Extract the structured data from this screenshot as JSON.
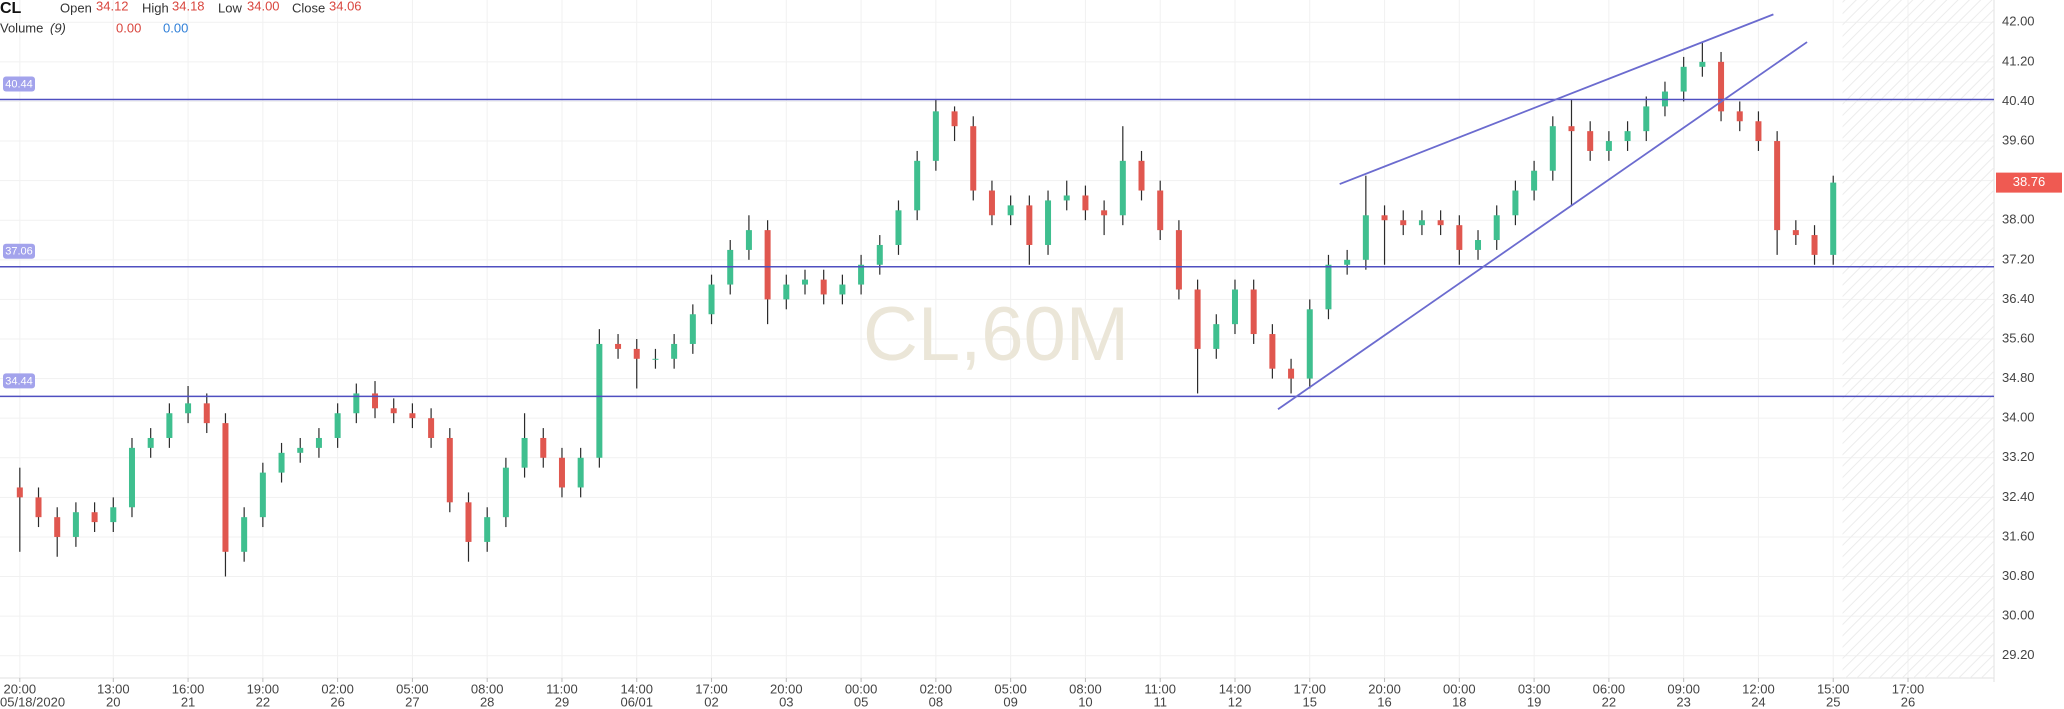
{
  "header": {
    "symbol": "CL",
    "ohlc": [
      {
        "label": "Open",
        "value": "34.12"
      },
      {
        "label": "High",
        "value": "34.18"
      },
      {
        "label": "Low",
        "value": "34.00"
      },
      {
        "label": "Close",
        "value": "34.06"
      }
    ],
    "volume": {
      "label": "Volume",
      "period": "(9)",
      "values": [
        "0.00",
        "0.00"
      ]
    }
  },
  "chart_data": {
    "type": "candlestick",
    "watermark": "CL,60M",
    "x": [
      0,
      1,
      2,
      3,
      4,
      5,
      6,
      7,
      8,
      9,
      10,
      11,
      12,
      13,
      14,
      15,
      16,
      17,
      18,
      19,
      20,
      21,
      22,
      23,
      24,
      25,
      26,
      27,
      28,
      29,
      30,
      31,
      32,
      33,
      34,
      35,
      36,
      37,
      38,
      39,
      40,
      41,
      42,
      43,
      44,
      45,
      46,
      47,
      48,
      49,
      50,
      51,
      52,
      53,
      54,
      55,
      56,
      57,
      58,
      59,
      60,
      61,
      62,
      63,
      64,
      65,
      66,
      67,
      68,
      69,
      70,
      71,
      72,
      73,
      74,
      75,
      76,
      77,
      78,
      79,
      80,
      81,
      82,
      83,
      84,
      85,
      86,
      87,
      88,
      89,
      90,
      91,
      92,
      93,
      94,
      95,
      96,
      97
    ],
    "open": [
      32.6,
      32.4,
      32.0,
      31.6,
      32.1,
      31.9,
      32.2,
      33.4,
      33.6,
      34.1,
      34.3,
      33.9,
      31.3,
      32.0,
      32.9,
      33.3,
      33.4,
      33.6,
      34.1,
      34.5,
      34.2,
      34.1,
      34.0,
      33.6,
      32.3,
      31.5,
      32.0,
      33.0,
      33.6,
      33.2,
      32.6,
      33.2,
      35.5,
      35.4,
      35.2,
      35.2,
      35.5,
      36.1,
      36.7,
      37.4,
      37.8,
      36.4,
      36.7,
      36.8,
      36.5,
      36.7,
      37.1,
      37.5,
      38.2,
      39.2,
      40.2,
      39.9,
      38.6,
      38.1,
      38.3,
      37.5,
      38.4,
      38.5,
      38.2,
      38.1,
      39.2,
      38.6,
      37.8,
      36.6,
      35.4,
      35.9,
      36.6,
      35.7,
      35.0,
      34.8,
      36.2,
      37.1,
      37.2,
      38.1,
      38.0,
      37.9,
      38.0,
      37.9,
      37.4,
      37.6,
      38.1,
      38.6,
      39.0,
      39.9,
      39.8,
      39.4,
      39.6,
      39.8,
      40.3,
      40.6,
      41.1,
      41.2,
      40.2,
      40.0,
      39.6,
      37.8,
      37.7,
      37.3
    ],
    "high": [
      33.0,
      32.6,
      32.2,
      32.3,
      32.3,
      32.4,
      33.6,
      33.8,
      34.3,
      34.65,
      34.5,
      34.1,
      32.2,
      33.1,
      33.5,
      33.6,
      33.8,
      34.3,
      34.7,
      34.75,
      34.4,
      34.3,
      34.2,
      33.8,
      32.5,
      32.2,
      33.2,
      34.1,
      33.8,
      33.4,
      33.4,
      35.8,
      35.7,
      35.6,
      35.4,
      35.7,
      36.3,
      36.9,
      37.6,
      38.1,
      38.0,
      36.9,
      37.0,
      37.0,
      36.9,
      37.3,
      37.7,
      38.4,
      39.4,
      40.44,
      40.3,
      40.1,
      38.8,
      38.5,
      38.5,
      38.6,
      38.8,
      38.7,
      38.4,
      39.9,
      39.4,
      38.8,
      38.0,
      36.8,
      36.1,
      36.8,
      36.8,
      35.9,
      35.2,
      36.4,
      37.3,
      37.4,
      38.9,
      38.3,
      38.2,
      38.2,
      38.2,
      38.1,
      37.8,
      38.3,
      38.8,
      39.2,
      40.1,
      40.45,
      40.0,
      39.8,
      40.0,
      40.5,
      40.8,
      41.3,
      41.6,
      41.4,
      40.4,
      40.2,
      39.8,
      38.0,
      37.9,
      38.9
    ],
    "low": [
      31.3,
      31.8,
      31.2,
      31.4,
      31.7,
      31.7,
      32.0,
      33.2,
      33.4,
      33.9,
      33.7,
      30.8,
      31.1,
      31.8,
      32.7,
      33.1,
      33.2,
      33.4,
      33.9,
      34.0,
      33.9,
      33.8,
      33.4,
      32.1,
      31.1,
      31.3,
      31.8,
      32.8,
      33.0,
      32.4,
      32.4,
      33.0,
      35.2,
      34.6,
      35.0,
      35.0,
      35.3,
      35.9,
      36.5,
      37.2,
      35.9,
      36.2,
      36.5,
      36.3,
      36.3,
      36.5,
      36.9,
      37.3,
      38.0,
      39.0,
      39.6,
      38.4,
      37.9,
      37.9,
      37.1,
      37.3,
      38.2,
      38.0,
      37.7,
      37.9,
      38.4,
      37.6,
      36.4,
      34.5,
      35.2,
      35.7,
      35.5,
      34.8,
      34.5,
      34.6,
      36.0,
      36.9,
      37.0,
      37.1,
      37.7,
      37.7,
      37.7,
      37.1,
      37.2,
      37.4,
      37.9,
      38.4,
      38.8,
      38.3,
      39.2,
      39.2,
      39.4,
      39.6,
      40.1,
      40.4,
      40.9,
      40.0,
      39.8,
      39.4,
      37.3,
      37.5,
      37.1,
      37.1
    ],
    "close": [
      32.4,
      32.0,
      31.6,
      32.1,
      31.9,
      32.2,
      33.4,
      33.6,
      34.1,
      34.3,
      33.9,
      31.3,
      32.0,
      32.9,
      33.3,
      33.4,
      33.6,
      34.1,
      34.5,
      34.2,
      34.1,
      34.0,
      33.6,
      32.3,
      31.5,
      32.0,
      33.0,
      33.6,
      33.2,
      32.6,
      33.2,
      35.5,
      35.4,
      35.2,
      35.2,
      35.5,
      36.1,
      36.7,
      37.4,
      37.8,
      36.4,
      36.7,
      36.8,
      36.5,
      36.7,
      37.1,
      37.5,
      38.2,
      39.2,
      40.2,
      39.9,
      38.6,
      38.1,
      38.3,
      37.5,
      38.4,
      38.5,
      38.2,
      38.1,
      39.2,
      38.6,
      37.8,
      36.6,
      35.4,
      35.9,
      36.6,
      35.7,
      35.0,
      34.8,
      36.2,
      37.1,
      37.2,
      38.1,
      38.0,
      37.9,
      38.0,
      37.9,
      37.4,
      37.6,
      38.1,
      38.6,
      39.0,
      39.9,
      39.8,
      39.4,
      39.6,
      39.8,
      40.3,
      40.6,
      41.1,
      41.2,
      40.2,
      40.0,
      39.6,
      37.8,
      37.7,
      37.3,
      38.76
    ],
    "up_color": "#3fbf8f",
    "down_color": "#e0574f",
    "wick_color": "#2b2b2b",
    "xlim": [
      -1.06,
      105.6
    ],
    "xticks": [
      {
        "value": 0,
        "label": "20:00",
        "date": "05/18/2020"
      },
      {
        "value": 5,
        "label": "13:00",
        "date": "20"
      },
      {
        "value": 9,
        "label": "16:00",
        "date": "21"
      },
      {
        "value": 13,
        "label": "19:00",
        "date": "22"
      },
      {
        "value": 17,
        "label": "02:00",
        "date": "26"
      },
      {
        "value": 21,
        "label": "05:00",
        "date": "27"
      },
      {
        "value": 25,
        "label": "08:00",
        "date": "28"
      },
      {
        "value": 29,
        "label": "11:00",
        "date": "29"
      },
      {
        "value": 33,
        "label": "14:00",
        "date": "06/01"
      },
      {
        "value": 37,
        "label": "17:00",
        "date": "02"
      },
      {
        "value": 41,
        "label": "20:00",
        "date": "03"
      },
      {
        "value": 45,
        "label": "00:00",
        "date": "05"
      },
      {
        "value": 49,
        "label": "02:00",
        "date": "08"
      },
      {
        "value": 53,
        "label": "05:00",
        "date": "09"
      },
      {
        "value": 57,
        "label": "08:00",
        "date": "10"
      },
      {
        "value": 61,
        "label": "11:00",
        "date": "11"
      },
      {
        "value": 65,
        "label": "14:00",
        "date": "12"
      },
      {
        "value": 69,
        "label": "17:00",
        "date": "15"
      },
      {
        "value": 73,
        "label": "20:00",
        "date": "16"
      },
      {
        "value": 77,
        "label": "00:00",
        "date": "18"
      },
      {
        "value": 81,
        "label": "03:00",
        "date": "19"
      },
      {
        "value": 85,
        "label": "06:00",
        "date": "22"
      },
      {
        "value": 89,
        "label": "09:00",
        "date": "23"
      },
      {
        "value": 93,
        "label": "12:00",
        "date": "24"
      },
      {
        "value": 97,
        "label": "15:00",
        "date": "25"
      },
      {
        "value": 101,
        "label": "17:00",
        "date": "26"
      }
    ],
    "ylim": [
      28.75,
      42.45
    ],
    "yticks": [
      {
        "value": 29.2,
        "label": "29.20"
      },
      {
        "value": 30.0,
        "label": "30.00"
      },
      {
        "value": 30.8,
        "label": "30.80"
      },
      {
        "value": 31.6,
        "label": "31.60"
      },
      {
        "value": 32.4,
        "label": "32.40"
      },
      {
        "value": 33.2,
        "label": "33.20"
      },
      {
        "value": 34.0,
        "label": "34.00"
      },
      {
        "value": 34.8,
        "label": "34.80"
      },
      {
        "value": 35.6,
        "label": "35.60"
      },
      {
        "value": 36.4,
        "label": "36.40"
      },
      {
        "value": 37.2,
        "label": "37.20"
      },
      {
        "value": 38.0,
        "label": "38.00"
      },
      {
        "value": 38.8,
        "label": "38.80"
      },
      {
        "value": 39.6,
        "label": "39.60"
      },
      {
        "value": 40.4,
        "label": "40.40"
      },
      {
        "value": 41.2,
        "label": "41.20"
      },
      {
        "value": 42.0,
        "label": "42.00"
      }
    ],
    "grid": true,
    "levels": [
      40.44,
      37.06,
      34.44
    ],
    "level_color": "#4f4fc0",
    "trendlines": [
      {
        "x": [
          70.6,
          93.8
        ],
        "y": [
          38.73,
          42.16
        ]
      },
      {
        "x": [
          67.3,
          95.6
        ],
        "y": [
          34.18,
          41.6
        ]
      }
    ],
    "trendline_color": "#6b6bcf",
    "last_price": 38.76,
    "last_price_color": "#ef5a52"
  }
}
